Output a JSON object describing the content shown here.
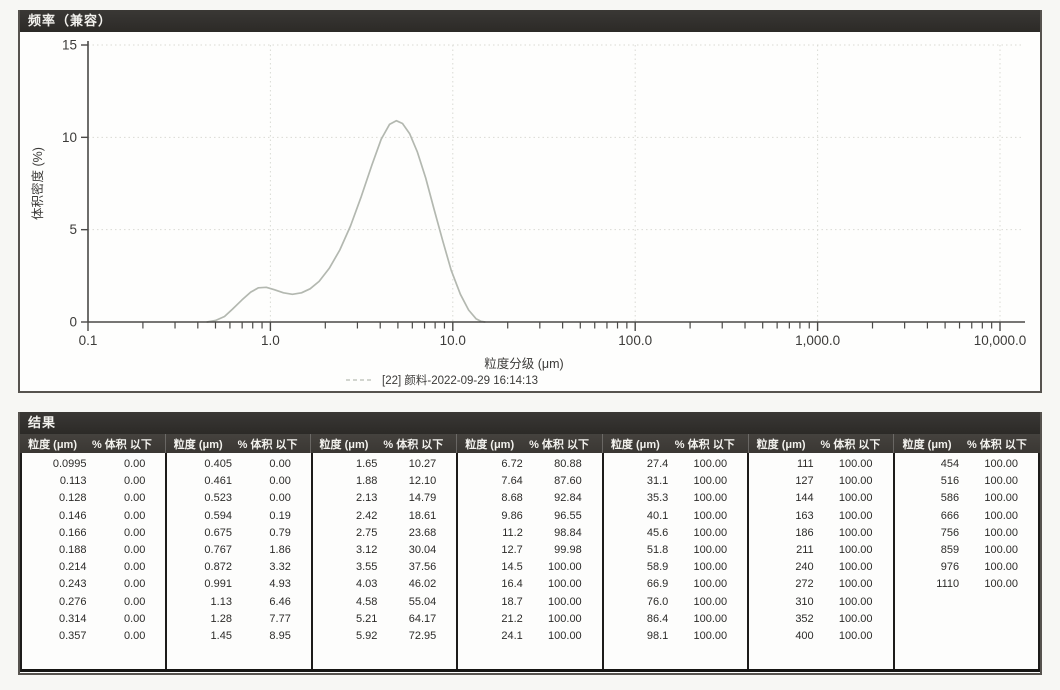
{
  "panel_chart": {
    "title": "频率（兼容）"
  },
  "chart_data": {
    "type": "line",
    "title": "频率（兼容）",
    "xlabel": "粒度分级 (μm)",
    "ylabel": "体积密度 (%)",
    "x_scale": "log",
    "xlim": [
      0.1,
      10000
    ],
    "ylim": [
      0,
      15
    ],
    "y_ticks": [
      0,
      5,
      10,
      15
    ],
    "x_ticks": [
      0.1,
      1,
      10,
      100,
      1000,
      10000
    ],
    "x_tick_labels": [
      "0.1",
      "1.0",
      "10.0",
      "100.0",
      "1,000.0",
      "10,000.0"
    ],
    "grid": true,
    "legend_position": "bottom-center",
    "axis_color": "#4a4947",
    "grid_color": "#d9dad4",
    "series": [
      {
        "name": "[22] 颜料-2022-09-29 16:14:13",
        "color": "#b3b8b0",
        "points": [
          [
            0.45,
            0.0
          ],
          [
            0.5,
            0.08
          ],
          [
            0.56,
            0.3
          ],
          [
            0.62,
            0.7
          ],
          [
            0.7,
            1.2
          ],
          [
            0.78,
            1.62
          ],
          [
            0.86,
            1.85
          ],
          [
            0.95,
            1.88
          ],
          [
            1.05,
            1.75
          ],
          [
            1.18,
            1.58
          ],
          [
            1.32,
            1.5
          ],
          [
            1.48,
            1.58
          ],
          [
            1.65,
            1.8
          ],
          [
            1.85,
            2.2
          ],
          [
            2.1,
            2.9
          ],
          [
            2.4,
            3.9
          ],
          [
            2.75,
            5.2
          ],
          [
            3.15,
            6.8
          ],
          [
            3.6,
            8.5
          ],
          [
            4.05,
            9.9
          ],
          [
            4.5,
            10.7
          ],
          [
            4.9,
            10.9
          ],
          [
            5.3,
            10.75
          ],
          [
            5.8,
            10.2
          ],
          [
            6.4,
            9.2
          ],
          [
            7.1,
            7.8
          ],
          [
            7.9,
            6.1
          ],
          [
            8.8,
            4.4
          ],
          [
            9.8,
            2.8
          ],
          [
            11.0,
            1.5
          ],
          [
            12.2,
            0.65
          ],
          [
            13.4,
            0.18
          ],
          [
            14.3,
            0.03
          ],
          [
            15.0,
            0.0
          ]
        ]
      }
    ]
  },
  "results_table": {
    "title": "结果",
    "size_header": "粒度 (μm)",
    "pct_header": "% 体积 以下",
    "groups": [
      [
        [
          "0.0995",
          "0.00"
        ],
        [
          "0.113",
          "0.00"
        ],
        [
          "0.128",
          "0.00"
        ],
        [
          "0.146",
          "0.00"
        ],
        [
          "0.166",
          "0.00"
        ],
        [
          "0.188",
          "0.00"
        ],
        [
          "0.214",
          "0.00"
        ],
        [
          "0.243",
          "0.00"
        ],
        [
          "0.276",
          "0.00"
        ],
        [
          "0.314",
          "0.00"
        ],
        [
          "0.357",
          "0.00"
        ]
      ],
      [
        [
          "0.405",
          "0.00"
        ],
        [
          "0.461",
          "0.00"
        ],
        [
          "0.523",
          "0.00"
        ],
        [
          "0.594",
          "0.19"
        ],
        [
          "0.675",
          "0.79"
        ],
        [
          "0.767",
          "1.86"
        ],
        [
          "0.872",
          "3.32"
        ],
        [
          "0.991",
          "4.93"
        ],
        [
          "1.13",
          "6.46"
        ],
        [
          "1.28",
          "7.77"
        ],
        [
          "1.45",
          "8.95"
        ]
      ],
      [
        [
          "1.65",
          "10.27"
        ],
        [
          "1.88",
          "12.10"
        ],
        [
          "2.13",
          "14.79"
        ],
        [
          "2.42",
          "18.61"
        ],
        [
          "2.75",
          "23.68"
        ],
        [
          "3.12",
          "30.04"
        ],
        [
          "3.55",
          "37.56"
        ],
        [
          "4.03",
          "46.02"
        ],
        [
          "4.58",
          "55.04"
        ],
        [
          "5.21",
          "64.17"
        ],
        [
          "5.92",
          "72.95"
        ]
      ],
      [
        [
          "6.72",
          "80.88"
        ],
        [
          "7.64",
          "87.60"
        ],
        [
          "8.68",
          "92.84"
        ],
        [
          "9.86",
          "96.55"
        ],
        [
          "11.2",
          "98.84"
        ],
        [
          "12.7",
          "99.98"
        ],
        [
          "14.5",
          "100.00"
        ],
        [
          "16.4",
          "100.00"
        ],
        [
          "18.7",
          "100.00"
        ],
        [
          "21.2",
          "100.00"
        ],
        [
          "24.1",
          "100.00"
        ]
      ],
      [
        [
          "27.4",
          "100.00"
        ],
        [
          "31.1",
          "100.00"
        ],
        [
          "35.3",
          "100.00"
        ],
        [
          "40.1",
          "100.00"
        ],
        [
          "45.6",
          "100.00"
        ],
        [
          "51.8",
          "100.00"
        ],
        [
          "58.9",
          "100.00"
        ],
        [
          "66.9",
          "100.00"
        ],
        [
          "76.0",
          "100.00"
        ],
        [
          "86.4",
          "100.00"
        ],
        [
          "98.1",
          "100.00"
        ]
      ],
      [
        [
          "111",
          "100.00"
        ],
        [
          "127",
          "100.00"
        ],
        [
          "144",
          "100.00"
        ],
        [
          "163",
          "100.00"
        ],
        [
          "186",
          "100.00"
        ],
        [
          "211",
          "100.00"
        ],
        [
          "240",
          "100.00"
        ],
        [
          "272",
          "100.00"
        ],
        [
          "310",
          "100.00"
        ],
        [
          "352",
          "100.00"
        ],
        [
          "400",
          "100.00"
        ]
      ],
      [
        [
          "454",
          "100.00"
        ],
        [
          "516",
          "100.00"
        ],
        [
          "586",
          "100.00"
        ],
        [
          "666",
          "100.00"
        ],
        [
          "756",
          "100.00"
        ],
        [
          "859",
          "100.00"
        ],
        [
          "976",
          "100.00"
        ],
        [
          "1110",
          "100.00"
        ]
      ]
    ]
  }
}
